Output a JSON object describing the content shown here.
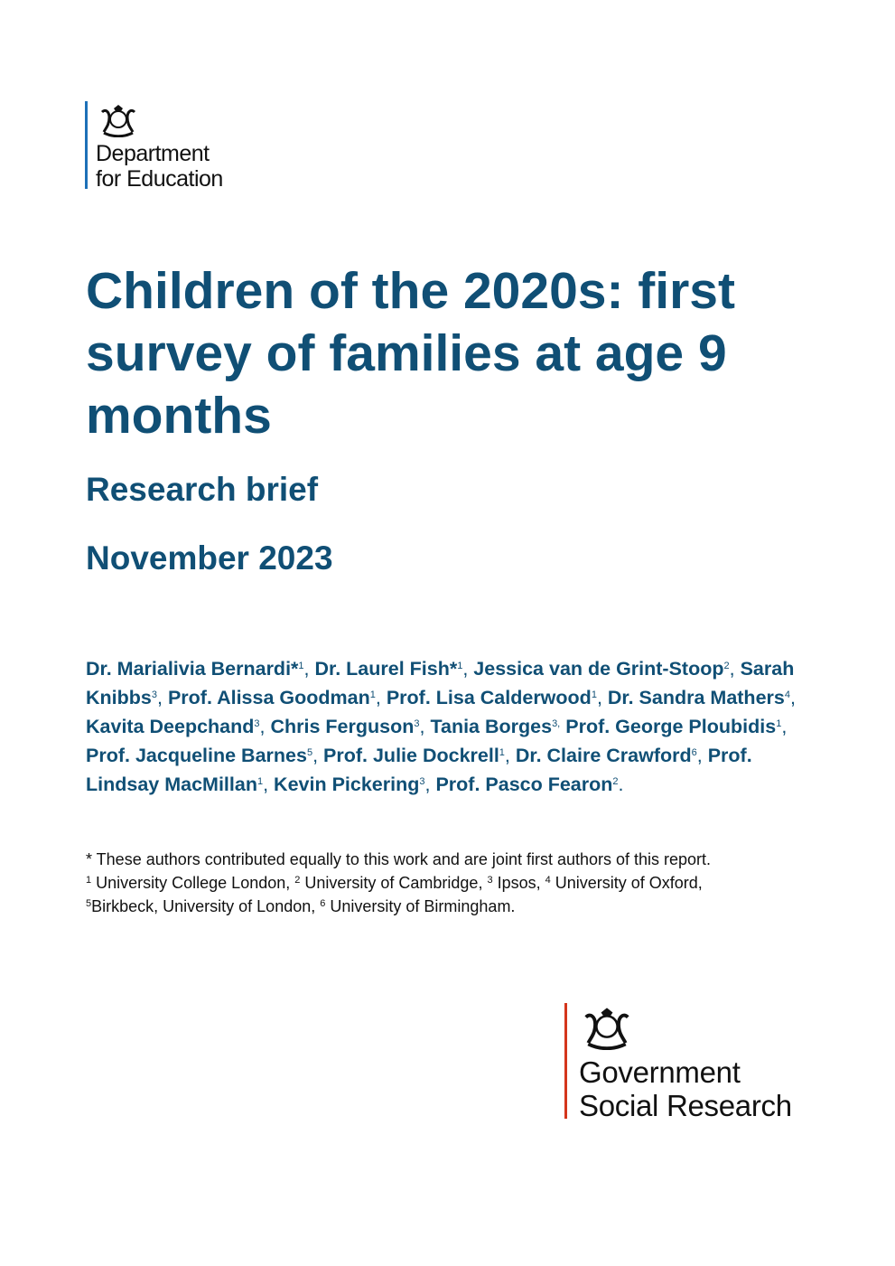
{
  "dfe_logo": {
    "line1": "Department",
    "line2": "for Education",
    "icon": "royal-coat-of-arms-icon",
    "bar_color": "#1d70b8"
  },
  "title": "Children of the 2020s: first survey of families at age 9 months",
  "subtitle": "Research brief",
  "date": "November 2023",
  "accent_color": "#104f75",
  "authors": [
    {
      "name": "Dr. Marialivia Bernardi*",
      "sup": "1",
      "sep": ", "
    },
    {
      "name": "Dr. Laurel Fish*",
      "sup": "1",
      "sep": ", "
    },
    {
      "name": "Jessica van de Grint-Stoop",
      "sup": "2",
      "sep": ", "
    },
    {
      "name": "Sarah Knibbs",
      "sup": "3",
      "sep": ", "
    },
    {
      "name": "Prof. Alissa Goodman",
      "sup": "1",
      "sep": ", "
    },
    {
      "name": "Prof. Lisa Calderwood",
      "sup": "1",
      "sep": ", "
    },
    {
      "name": "Dr. Sandra Mathers",
      "sup": "4",
      "sep": ", "
    },
    {
      "name": "Kavita Deepchand",
      "sup": "3",
      "sep": ", "
    },
    {
      "name": "Chris Ferguson",
      "sup": "3",
      "sep": ", "
    },
    {
      "name": "Tania Borges",
      "sup": "3,",
      "sep": " "
    },
    {
      "name": "Prof. George Ploubidis",
      "sup": "1",
      "sep": ", "
    },
    {
      "name": "Prof. Jacqueline Barnes",
      "sup": "5",
      "sep": ", "
    },
    {
      "name": "Prof. Julie Dockrell",
      "sup": "1",
      "sep": ", "
    },
    {
      "name": "Dr. Claire Crawford",
      "sup": "6",
      "sep": ", "
    },
    {
      "name": "Prof. Lindsay MacMillan",
      "sup": "1",
      "sep": ", "
    },
    {
      "name": "Kevin Pickering",
      "sup": "3",
      "sep": ", "
    },
    {
      "name": "Prof. Pasco Fearon",
      "sup": "2",
      "sep": "."
    }
  ],
  "notes": {
    "equal": "* These authors contributed equally to this work and are joint first authors of this report.",
    "affiliations": [
      {
        "sup": "1",
        "text": " University College London, "
      },
      {
        "sup": "2",
        "text": " University of Cambridge, "
      },
      {
        "sup": "3",
        "text": " Ipsos, "
      },
      {
        "sup": "4",
        "text": " University of Oxford, "
      },
      {
        "sup": "5",
        "text": "Birkbeck, University of London, "
      },
      {
        "sup": "6",
        "text": " University of Birmingham."
      }
    ]
  },
  "gsr_logo": {
    "line1": "Government",
    "line2": "Social Research",
    "icon": "royal-coat-of-arms-icon",
    "bar_color": "#d4351c"
  }
}
